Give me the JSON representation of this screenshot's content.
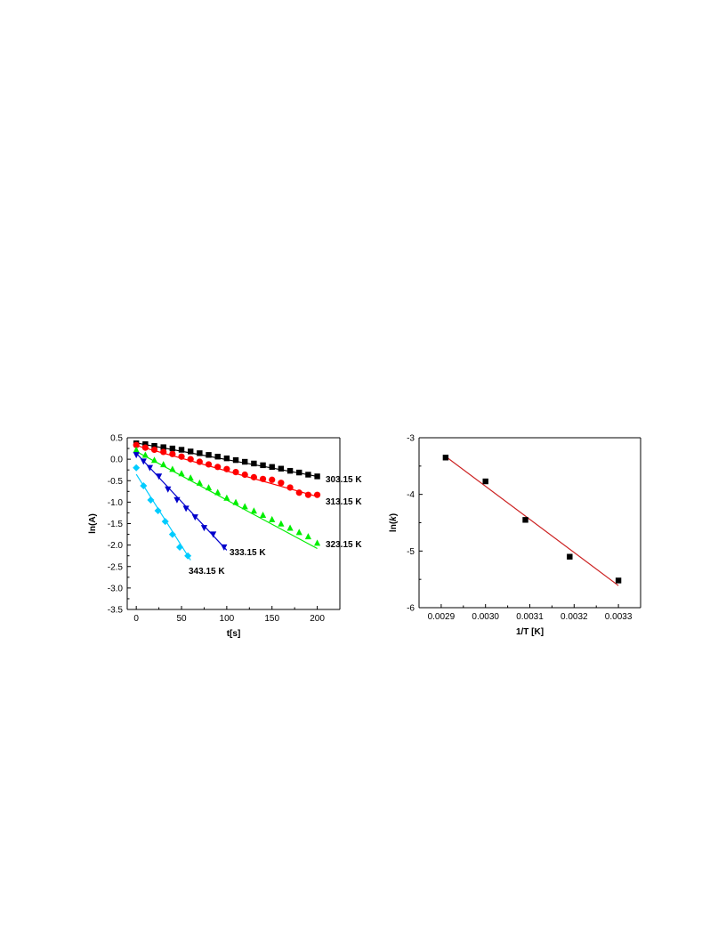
{
  "chart_data": [
    {
      "type": "scatter",
      "xlabel": "t[s]",
      "ylabel": "ln(A)",
      "xlim": [
        -10,
        225
      ],
      "ylim": [
        -3.5,
        0.5
      ],
      "xticks": [
        0,
        50,
        100,
        150,
        200
      ],
      "yticks": [
        0.5,
        0.0,
        -0.5,
        -1.0,
        -1.5,
        -2.0,
        -2.5,
        -3.0,
        -3.5
      ],
      "ytick_labels": [
        "0.5",
        "0.0",
        "-0.5",
        "-1.0",
        "-1.5",
        "-2.0",
        "-2.5",
        "-3.0",
        "-3.5"
      ],
      "grid": false,
      "fit_lines": true,
      "series": [
        {
          "name": "303.15 K",
          "color": "#000000",
          "marker": "square",
          "x": [
            0,
            10,
            20,
            30,
            40,
            50,
            60,
            70,
            80,
            90,
            100,
            110,
            120,
            130,
            140,
            150,
            160,
            170,
            180,
            190,
            200
          ],
          "y": [
            0.37,
            0.35,
            0.31,
            0.28,
            0.25,
            0.22,
            0.18,
            0.14,
            0.1,
            0.06,
            0.02,
            -0.02,
            -0.06,
            -0.1,
            -0.14,
            -0.18,
            -0.22,
            -0.27,
            -0.31,
            -0.36,
            -0.4
          ],
          "fit": {
            "x": [
              0,
              200
            ],
            "y": [
              0.38,
              -0.4
            ]
          }
        },
        {
          "name": "313.15 K",
          "color": "#ff0000",
          "marker": "circle",
          "x": [
            0,
            10,
            20,
            30,
            40,
            50,
            60,
            70,
            80,
            90,
            100,
            110,
            120,
            130,
            140,
            150,
            160,
            170,
            180,
            190,
            200
          ],
          "y": [
            0.33,
            0.27,
            0.22,
            0.17,
            0.12,
            0.06,
            0.0,
            -0.06,
            -0.12,
            -0.18,
            -0.23,
            -0.3,
            -0.36,
            -0.42,
            -0.46,
            -0.48,
            -0.55,
            -0.66,
            -0.78,
            -0.83,
            -0.83
          ],
          "fit": {
            "x": [
              0,
              200
            ],
            "y": [
              0.32,
              -0.87
            ]
          }
        },
        {
          "name": "323.15 K",
          "color": "#00ee00",
          "marker": "triangle-up",
          "x": [
            0,
            10,
            20,
            30,
            40,
            50,
            60,
            70,
            80,
            90,
            100,
            110,
            120,
            130,
            140,
            150,
            160,
            170,
            180,
            190,
            200
          ],
          "y": [
            0.22,
            0.1,
            -0.02,
            -0.12,
            -0.23,
            -0.33,
            -0.43,
            -0.55,
            -0.66,
            -0.77,
            -0.9,
            -1.0,
            -1.1,
            -1.2,
            -1.3,
            -1.4,
            -1.5,
            -1.6,
            -1.7,
            -1.8,
            -1.95
          ],
          "fit": {
            "x": [
              0,
              200
            ],
            "y": [
              0.18,
              -2.08
            ]
          }
        },
        {
          "name": "333.15 K",
          "color": "#0000cc",
          "marker": "triangle-down",
          "x": [
            0,
            8,
            15,
            25,
            35,
            45,
            55,
            65,
            75,
            85,
            97
          ],
          "y": [
            0.1,
            -0.05,
            -0.2,
            -0.4,
            -0.7,
            -0.95,
            -1.15,
            -1.35,
            -1.6,
            -1.75,
            -2.05
          ],
          "fit": {
            "x": [
              0,
              100
            ],
            "y": [
              0.14,
              -2.12
            ]
          }
        },
        {
          "name": "343.15 K",
          "color": "#00ccff",
          "marker": "diamond",
          "x": [
            0,
            8,
            16,
            24,
            32,
            40,
            48,
            57
          ],
          "y": [
            -0.2,
            -0.62,
            -0.95,
            -1.2,
            -1.45,
            -1.75,
            -2.05,
            -2.25
          ],
          "fit": {
            "x": [
              0,
              60
            ],
            "y": [
              -0.35,
              -2.35
            ]
          }
        }
      ]
    },
    {
      "type": "scatter",
      "xlabel": "1/T [K]",
      "ylabel_prefix": "ln(",
      "ylabel_var": "k",
      "ylabel_suffix": ")",
      "xlim": [
        0.00285,
        0.00335
      ],
      "ylim": [
        -6,
        -3
      ],
      "xticks": [
        0.0029,
        0.003,
        0.0031,
        0.0032,
        0.0033
      ],
      "xtick_labels": [
        "0.0029",
        "0.0030",
        "0.0031",
        "0.0032",
        "0.0033"
      ],
      "yticks": [
        -3,
        -4,
        -5,
        -6
      ],
      "ytick_labels": [
        "-3",
        "-4",
        "-5",
        "-6"
      ],
      "grid": false,
      "series": [
        {
          "color": "#000000",
          "marker": "square",
          "x": [
            0.00291,
            0.003,
            0.00309,
            0.00319,
            0.0033
          ],
          "y": [
            -3.35,
            -3.77,
            -4.45,
            -5.1,
            -5.52
          ]
        }
      ],
      "fit": {
        "color": "#cc2222",
        "x": [
          0.00291,
          0.0033
        ],
        "y": [
          -3.33,
          -5.61
        ]
      }
    }
  ]
}
